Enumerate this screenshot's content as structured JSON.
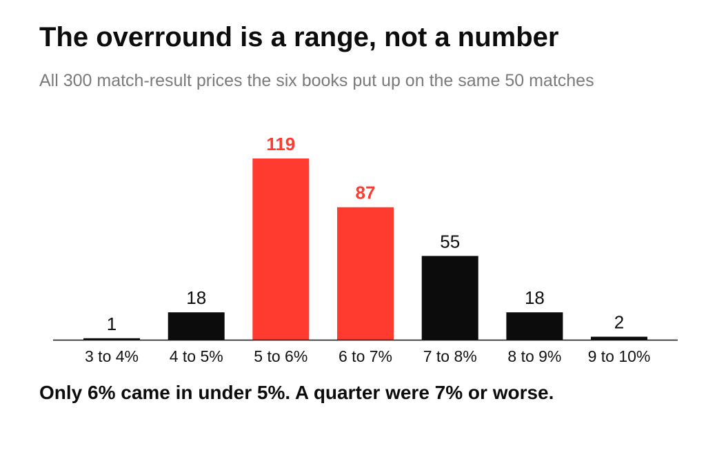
{
  "header": {
    "title": "The overround is a range, not a number",
    "subtitle": "All 300 match-result prices the six books put up on the same 50 matches"
  },
  "footnote": "Only 6% came in under 5%. A quarter were 7% or worse.",
  "colors": {
    "highlight": "#ff3b30",
    "default": "#0c0c0c",
    "axis": "#111111"
  },
  "chart_data": {
    "type": "bar",
    "title": "The overround is a range, not a number",
    "subtitle": "All 300 match-result prices the six books put up on the same 50 matches",
    "xlabel": "",
    "ylabel": "",
    "grid": false,
    "categories": [
      "3 to 4%",
      "4 to 5%",
      "5 to 6%",
      "6 to 7%",
      "7 to 8%",
      "8 to 9%",
      "9 to 10%"
    ],
    "values": [
      1,
      18,
      119,
      87,
      55,
      18,
      2
    ],
    "highlighted": [
      "5 to 6%",
      "6 to 7%"
    ],
    "ylim": [
      0,
      119
    ]
  }
}
